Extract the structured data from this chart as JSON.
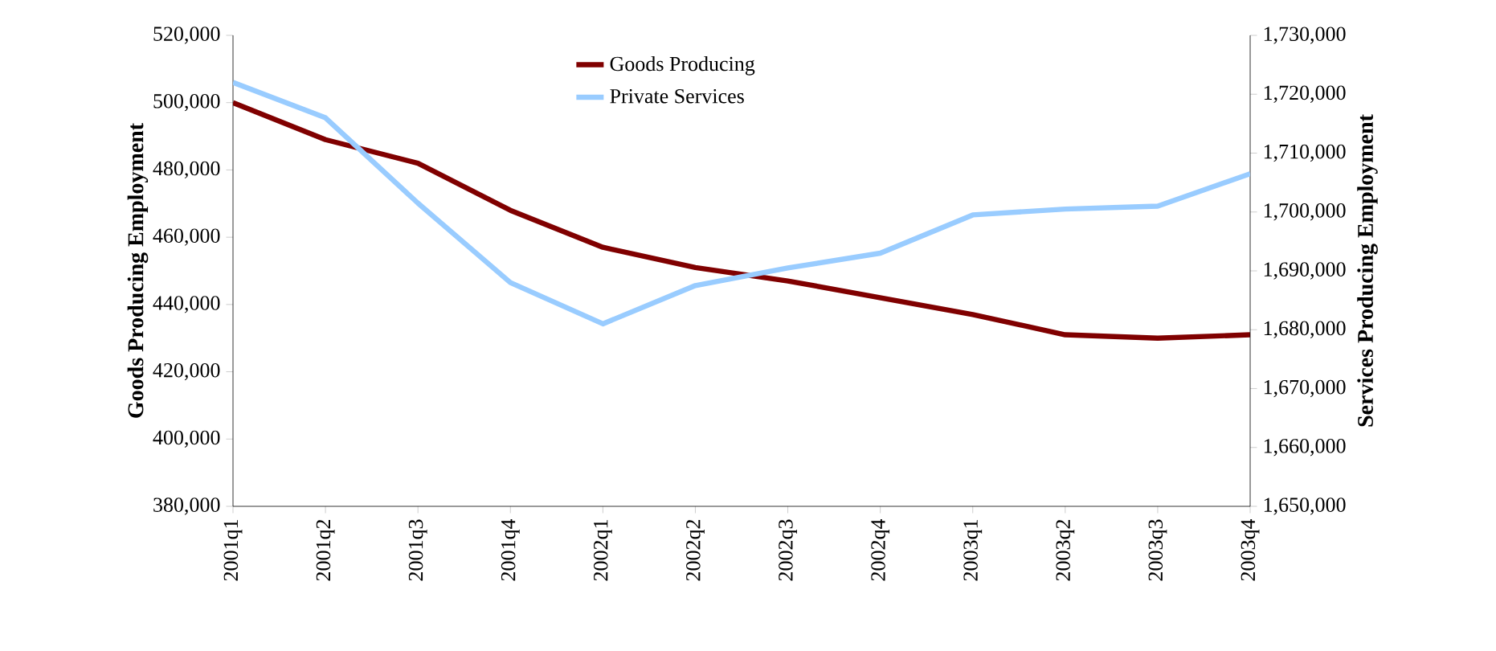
{
  "chart_data": {
    "type": "line",
    "ylabel": "Goods Producing Employment",
    "y2label": "Services Producing Employment",
    "categories": [
      "2001q1",
      "2001q2",
      "2001q3",
      "2001q4",
      "2002q1",
      "2002q2",
      "2002q3",
      "2002q4",
      "2003q1",
      "2003q2",
      "2003q3",
      "2003q4"
    ],
    "series": [
      {
        "name": "Goods Producing",
        "color": "#800000",
        "axis": "y",
        "values": [
          500000,
          489000,
          482000,
          468000,
          457000,
          451000,
          447000,
          442000,
          437000,
          431000,
          430000,
          431000
        ]
      },
      {
        "name": "Private Services",
        "color": "#99ccff",
        "axis": "y2",
        "values": [
          1722000,
          1716000,
          1701500,
          1688000,
          1681000,
          1687500,
          1690500,
          1693000,
          1699500,
          1700500,
          1701000,
          1706500
        ]
      }
    ],
    "ylim": [
      380000,
      520000
    ],
    "yticks": [
      {
        "value": 380000,
        "label": "380,000"
      },
      {
        "value": 400000,
        "label": "400,000"
      },
      {
        "value": 420000,
        "label": "420,000"
      },
      {
        "value": 440000,
        "label": "440,000"
      },
      {
        "value": 460000,
        "label": "460,000"
      },
      {
        "value": 480000,
        "label": "480,000"
      },
      {
        "value": 500000,
        "label": "500,000"
      },
      {
        "value": 520000,
        "label": "520,000"
      }
    ],
    "y2lim": [
      1650000,
      1730000
    ],
    "y2ticks": [
      {
        "value": 1650000,
        "label": "1,650,000"
      },
      {
        "value": 1660000,
        "label": "1,660,000"
      },
      {
        "value": 1670000,
        "label": "1,670,000"
      },
      {
        "value": 1680000,
        "label": "1,680,000"
      },
      {
        "value": 1690000,
        "label": "1,690,000"
      },
      {
        "value": 1700000,
        "label": "1,700,000"
      },
      {
        "value": 1710000,
        "label": "1,710,000"
      },
      {
        "value": 1720000,
        "label": "1,720,000"
      },
      {
        "value": 1730000,
        "label": "1,730,000"
      }
    ],
    "legend": "top",
    "marker": "none",
    "line_style": "solid"
  }
}
